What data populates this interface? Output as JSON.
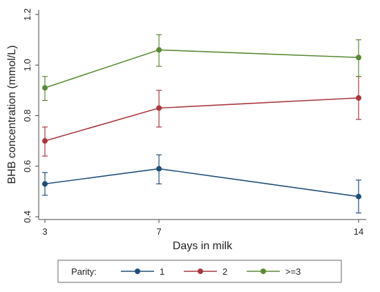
{
  "chart_data": {
    "type": "line",
    "title": "",
    "xlabel": "Days in milk",
    "ylabel": "BHB concentration (mmol/L)",
    "x": [
      3,
      7,
      14
    ],
    "x_ticks": [
      "3",
      "7",
      "14"
    ],
    "xlim": [
      3,
      14
    ],
    "y_ticks": [
      "0.4",
      "0.6",
      "0.8",
      "1.0",
      "1.2"
    ],
    "ylim": [
      0.4,
      1.2
    ],
    "grid": false,
    "legend": {
      "title": "Parity:",
      "placement": "bottom",
      "entries": [
        "1",
        "2",
        ">=3"
      ]
    },
    "series": [
      {
        "name": "1",
        "color": "#1f4e79",
        "values": [
          0.53,
          0.59,
          0.48
        ],
        "lower": [
          0.485,
          0.53,
          0.415
        ],
        "upper": [
          0.575,
          0.645,
          0.545
        ]
      },
      {
        "name": "2",
        "color": "#a8373e",
        "values": [
          0.7,
          0.83,
          0.87
        ],
        "lower": [
          0.64,
          0.755,
          0.785
        ],
        "upper": [
          0.755,
          0.9,
          0.955
        ]
      },
      {
        "name": ">=3",
        "color": "#5a8a34",
        "values": [
          0.91,
          1.06,
          1.03
        ],
        "lower": [
          0.86,
          0.995,
          0.955
        ],
        "upper": [
          0.955,
          1.12,
          1.1
        ]
      }
    ]
  }
}
